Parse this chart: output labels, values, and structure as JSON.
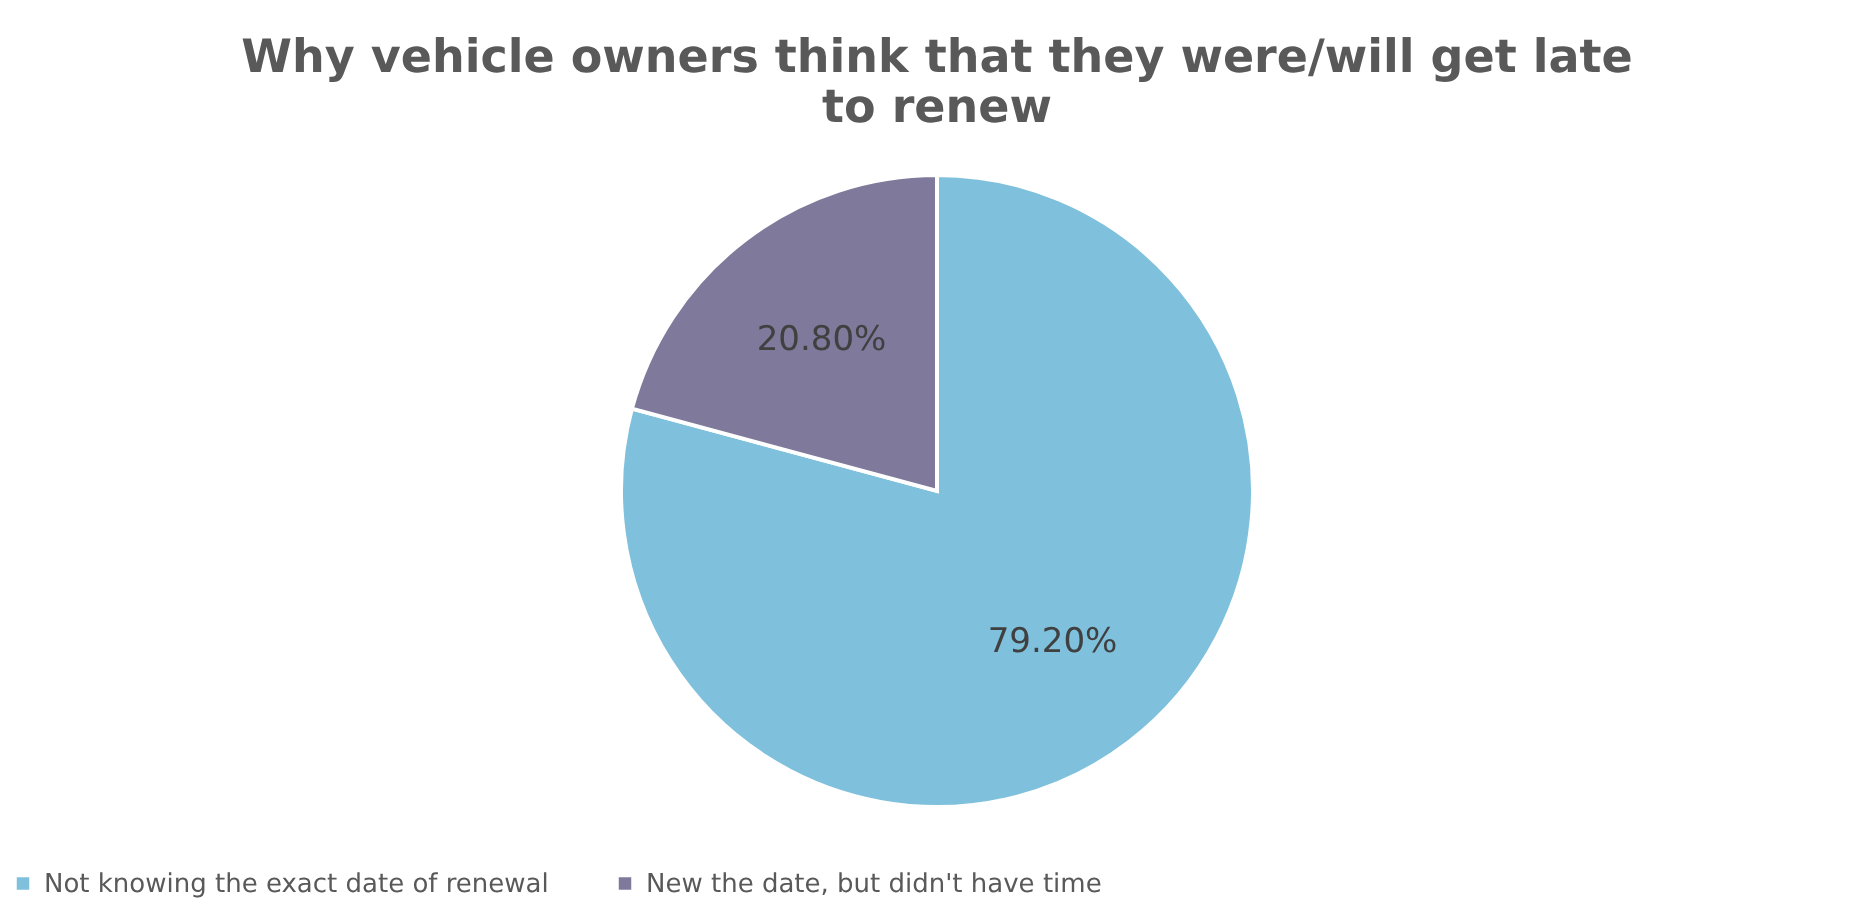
{
  "chart_data": {
    "type": "pie",
    "title": [
      "Why vehicle owners think that they were/will get late",
      "to renew"
    ],
    "categories": [
      "Not knowing the exact date of renewal",
      "New the date, but didn't have time"
    ],
    "values": [
      79.2,
      20.8
    ],
    "colors": [
      "#7fc0dc",
      "#7f7a9b"
    ],
    "value_labels": [
      "79.20%",
      "20.80%"
    ],
    "legend": "bottom"
  }
}
